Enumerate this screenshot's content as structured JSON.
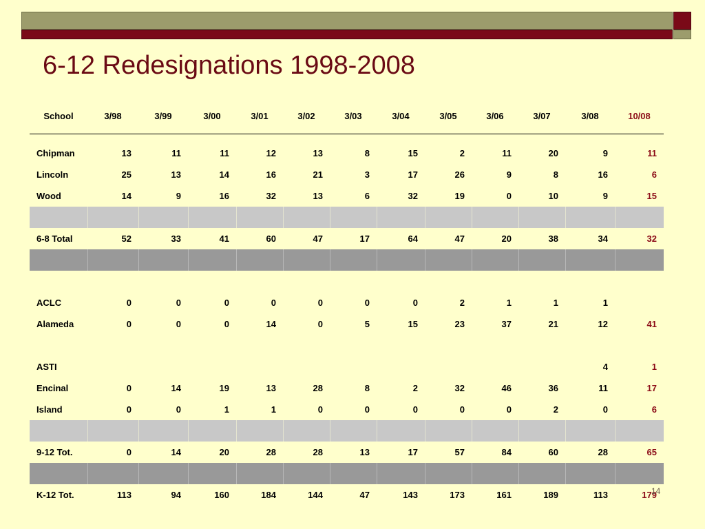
{
  "title": "6-12 Redesignations 1998-2008",
  "slide_number": "14",
  "colors": {
    "background": "#ffffcc",
    "title": "#6a0a14",
    "accent": "#8b0a16",
    "band_light": "#c8c8c8",
    "band_dark": "#999999"
  },
  "table": {
    "columns": [
      "School",
      "3/98",
      "3/99",
      "3/00",
      "3/01",
      "3/02",
      "3/03",
      "3/04",
      "3/05",
      "3/06",
      "3/07",
      "3/08",
      "10/08"
    ],
    "rows": [
      {
        "kind": "data",
        "cells": [
          "Chipman",
          "13",
          "11",
          "11",
          "12",
          "13",
          "8",
          "15",
          "2",
          "11",
          "20",
          "9",
          "11"
        ]
      },
      {
        "kind": "data",
        "cells": [
          "Lincoln",
          "25",
          "13",
          "14",
          "16",
          "21",
          "3",
          "17",
          "26",
          "9",
          "8",
          "16",
          "6"
        ]
      },
      {
        "kind": "data",
        "cells": [
          "Wood",
          "14",
          "9",
          "16",
          "32",
          "13",
          "6",
          "32",
          "19",
          "0",
          "10",
          "9",
          "15"
        ]
      },
      {
        "kind": "band-light",
        "cells": [
          "",
          "",
          "",
          "",
          "",
          "",
          "",
          "",
          "",
          "",
          "",
          "",
          ""
        ]
      },
      {
        "kind": "data",
        "cells": [
          "6-8 Total",
          "52",
          "33",
          "41",
          "60",
          "47",
          "17",
          "64",
          "47",
          "20",
          "38",
          "34",
          "32"
        ]
      },
      {
        "kind": "band-dark",
        "cells": [
          "",
          "",
          "",
          "",
          "",
          "",
          "",
          "",
          "",
          "",
          "",
          "",
          ""
        ]
      },
      {
        "kind": "blank",
        "cells": [
          "",
          "",
          "",
          "",
          "",
          "",
          "",
          "",
          "",
          "",
          "",
          "",
          ""
        ]
      },
      {
        "kind": "data",
        "cells": [
          "ACLC",
          "0",
          "0",
          "0",
          "0",
          "0",
          "0",
          "0",
          "2",
          "1",
          "1",
          "1",
          ""
        ]
      },
      {
        "kind": "data",
        "cells": [
          "Alameda",
          "0",
          "0",
          "0",
          "14",
          "0",
          "5",
          "15",
          "23",
          "37",
          "21",
          "12",
          "41"
        ]
      },
      {
        "kind": "blank",
        "cells": [
          "",
          "",
          "",
          "",
          "",
          "",
          "",
          "",
          "",
          "",
          "",
          "",
          ""
        ]
      },
      {
        "kind": "data",
        "cells": [
          "ASTI",
          "",
          "",
          "",
          "",
          "",
          "",
          "",
          "",
          "",
          "",
          "4",
          "1"
        ]
      },
      {
        "kind": "data",
        "cells": [
          "Encinal",
          "0",
          "14",
          "19",
          "13",
          "28",
          "8",
          "2",
          "32",
          "46",
          "36",
          "11",
          "17"
        ]
      },
      {
        "kind": "data",
        "cells": [
          "Island",
          "0",
          "0",
          "1",
          "1",
          "0",
          "0",
          "0",
          "0",
          "0",
          "2",
          "0",
          "6"
        ]
      },
      {
        "kind": "band-light",
        "cells": [
          "",
          "",
          "",
          "",
          "",
          "",
          "",
          "",
          "",
          "",
          "",
          "",
          ""
        ]
      },
      {
        "kind": "data",
        "cells": [
          "9-12 Tot.",
          "0",
          "14",
          "20",
          "28",
          "28",
          "13",
          "17",
          "57",
          "84",
          "60",
          "28",
          "65"
        ]
      },
      {
        "kind": "band-dark",
        "cells": [
          "",
          "",
          "",
          "",
          "",
          "",
          "",
          "",
          "",
          "",
          "",
          "",
          ""
        ]
      },
      {
        "kind": "data",
        "cells": [
          "K-12 Tot.",
          "113",
          "94",
          "160",
          "184",
          "144",
          "47",
          "143",
          "173",
          "161",
          "189",
          "113",
          "179"
        ]
      }
    ]
  }
}
